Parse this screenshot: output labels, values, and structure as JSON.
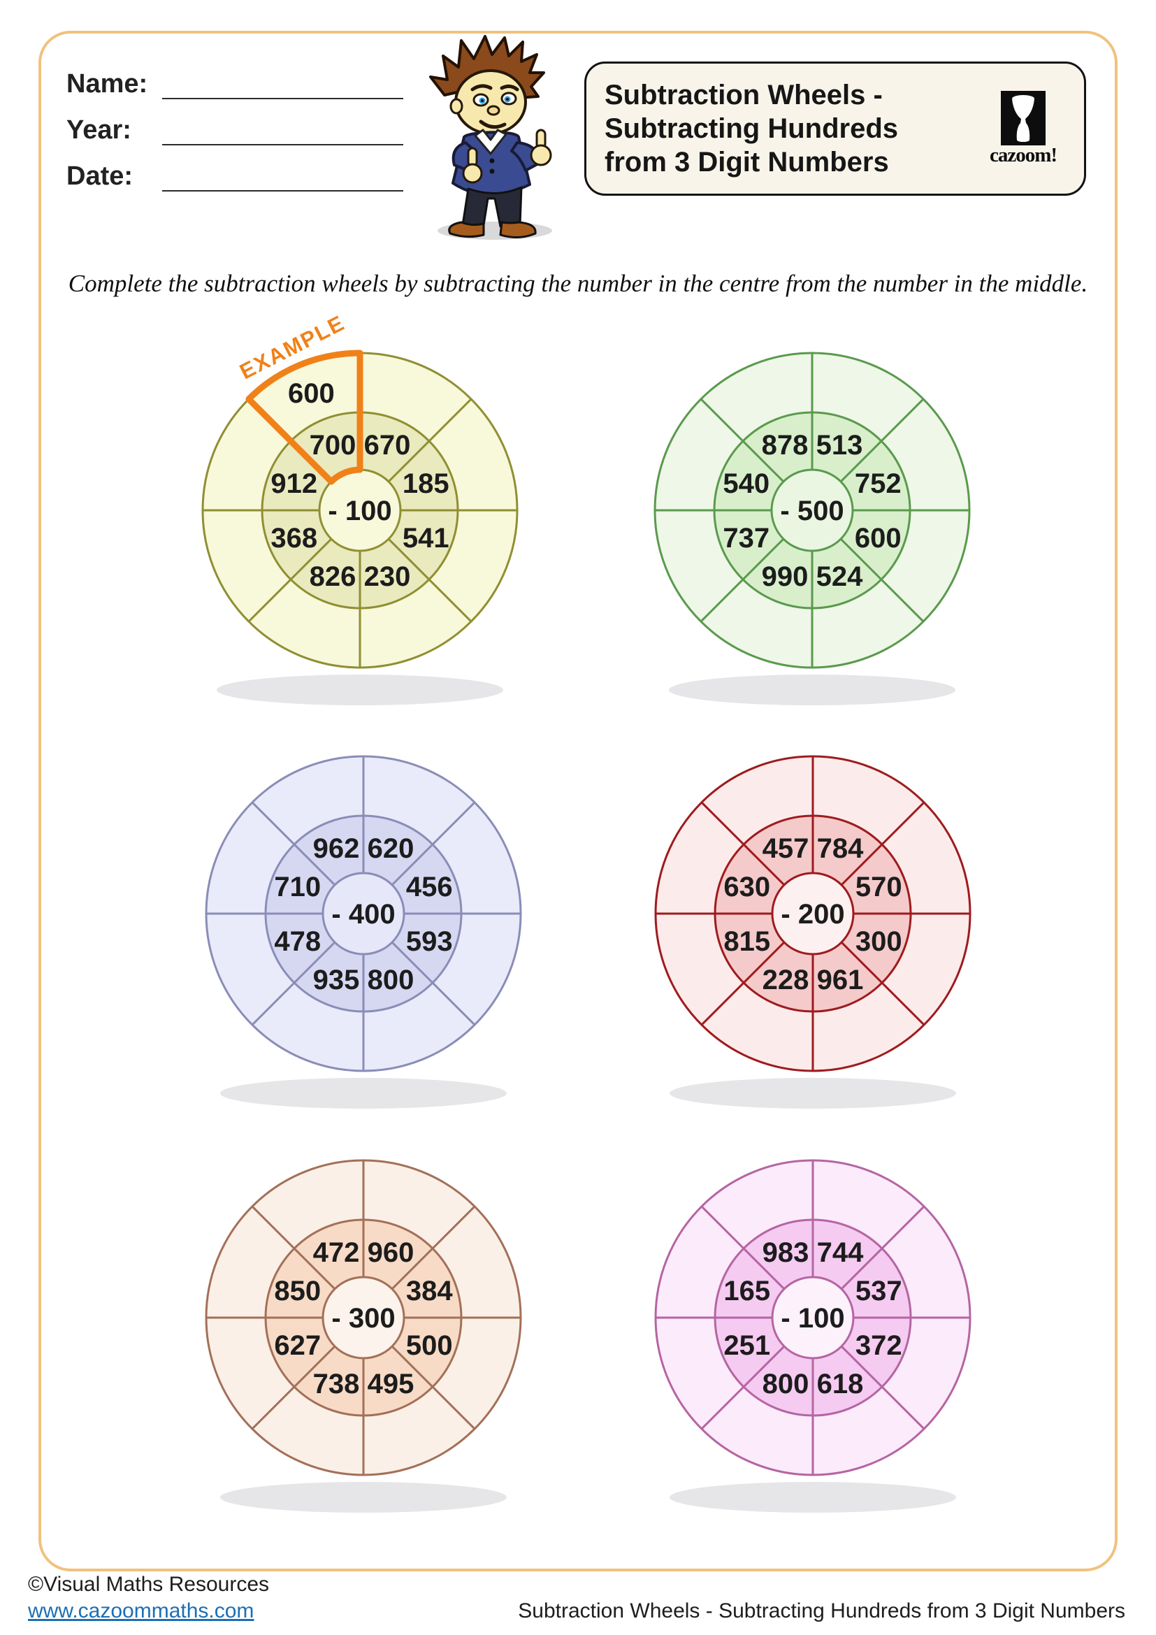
{
  "page": {
    "border_color": "#f0c27e",
    "background": "#ffffff"
  },
  "header": {
    "fields": [
      {
        "label": "Name:"
      },
      {
        "label": "Year:"
      },
      {
        "label": "Date:"
      }
    ],
    "title_lines": [
      "Subtraction Wheels -",
      "Subtracting Hundreds",
      "from 3 Digit Numbers"
    ],
    "logo_text": "cazoom!"
  },
  "instruction": "Complete the subtraction wheels by subtracting the number in the centre from the number in the middle.",
  "wheels": [
    {
      "name": "yellow",
      "center_label": "- 100",
      "inner_values": [
        "700",
        "670",
        "185",
        "541",
        "230",
        "826",
        "368",
        "912"
      ],
      "outer_values": [
        "600",
        "",
        "",
        "",
        "",
        "",
        "",
        ""
      ],
      "colors": {
        "border": "#8f8f33",
        "outer": "#f8f8da",
        "ring": "#eaeabf",
        "hub": "#f8f8da"
      },
      "example": {
        "label": "EXAMPLE",
        "color": "#f08119"
      }
    },
    {
      "name": "green",
      "center_label": "- 500",
      "inner_values": [
        "878",
        "513",
        "752",
        "600",
        "524",
        "990",
        "737",
        "540"
      ],
      "outer_values": [
        "",
        "",
        "",
        "",
        "",
        "",
        "",
        ""
      ],
      "colors": {
        "border": "#5a9a4d",
        "outer": "#eef7e8",
        "ring": "#d9efcc",
        "hub": "#eaf6e2"
      }
    },
    {
      "name": "purple",
      "center_label": "- 400",
      "inner_values": [
        "962",
        "620",
        "456",
        "593",
        "800",
        "935",
        "478",
        "710"
      ],
      "outer_values": [
        "",
        "",
        "",
        "",
        "",
        "",
        "",
        ""
      ],
      "colors": {
        "border": "#8a8db6",
        "outer": "#eaebfa",
        "ring": "#d6d8f2",
        "hub": "#e6e7f9"
      }
    },
    {
      "name": "red",
      "center_label": "- 200",
      "inner_values": [
        "457",
        "784",
        "570",
        "300",
        "961",
        "228",
        "815",
        "630"
      ],
      "outer_values": [
        "",
        "",
        "",
        "",
        "",
        "",
        "",
        ""
      ],
      "colors": {
        "border": "#9e1b1e",
        "outer": "#fcebeb",
        "ring": "#f5caca",
        "hub": "#fdf0f0"
      }
    },
    {
      "name": "peach",
      "center_label": "- 300",
      "inner_values": [
        "472",
        "960",
        "384",
        "500",
        "495",
        "738",
        "627",
        "850"
      ],
      "outer_values": [
        "",
        "",
        "",
        "",
        "",
        "",
        "",
        ""
      ],
      "colors": {
        "border": "#a37059",
        "outer": "#fbf0e7",
        "ring": "#f7dbc6",
        "hub": "#fcf3ec"
      }
    },
    {
      "name": "pink",
      "center_label": "- 100",
      "inner_values": [
        "983",
        "744",
        "537",
        "372",
        "618",
        "800",
        "251",
        "165"
      ],
      "outer_values": [
        "",
        "",
        "",
        "",
        "",
        "",
        "",
        ""
      ],
      "colors": {
        "border": "#b565a2",
        "outer": "#fcebfb",
        "ring": "#f5cbf1",
        "hub": "#fdf1fc"
      }
    }
  ],
  "footer": {
    "copyright": "©Visual Maths Resources",
    "link": "www.cazoommaths.com",
    "link_color": "#1b6fb5",
    "worksheet_title": "Subtraction Wheels - Subtracting Hundreds from 3 Digit Numbers"
  }
}
